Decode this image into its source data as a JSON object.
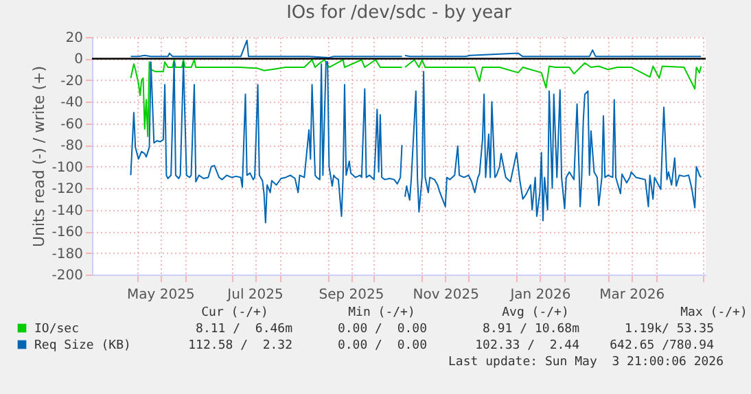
{
  "chart_data": {
    "type": "line",
    "title": "IOs for /dev/sdc - by year",
    "ylabel": "Units read (-) / write (+)",
    "xlim": [
      "2025-04-02",
      "2026-05-03"
    ],
    "xticks": [
      {
        "value": "2025-05-01",
        "label": null
      },
      {
        "value": "2025-05-16",
        "label": "May 2025"
      },
      {
        "value": "2025-06-01",
        "label": null
      },
      {
        "value": "2025-07-01",
        "label": null
      },
      {
        "value": "2025-07-16",
        "label": "Jul 2025"
      },
      {
        "value": "2025-08-01",
        "label": null
      },
      {
        "value": "2025-09-01",
        "label": null
      },
      {
        "value": "2025-09-16",
        "label": "Sep 2025"
      },
      {
        "value": "2025-10-01",
        "label": null
      },
      {
        "value": "2025-11-01",
        "label": null
      },
      {
        "value": "2025-11-16",
        "label": "Nov 2025"
      },
      {
        "value": "2025-12-01",
        "label": null
      },
      {
        "value": "2026-01-01",
        "label": null
      },
      {
        "value": "2026-01-16",
        "label": "Jan 2026"
      },
      {
        "value": "2026-02-01",
        "label": null
      },
      {
        "value": "2026-03-01",
        "label": null
      },
      {
        "value": "2026-03-16",
        "label": "Mar 2026"
      },
      {
        "value": "2026-04-01",
        "label": null
      },
      {
        "value": "2026-05-01",
        "label": null
      }
    ],
    "ylim": [
      -200,
      20
    ],
    "yticks": [
      20,
      0,
      -20,
      -40,
      -60,
      -80,
      -100,
      -120,
      -140,
      -160,
      -180,
      -200
    ],
    "grid": true,
    "legend": "bottom",
    "line_style": "solid",
    "marker": "none",
    "ref_lines": [
      {
        "axis": "y",
        "value": 0,
        "color": "#000000"
      }
    ],
    "series": [
      {
        "name": "IO/sec",
        "color": "#00cc00",
        "x": [
          "2025-04-27",
          "2025-04-29",
          "2025-04-30",
          "2025-05-02",
          "2025-05-03",
          "2025-05-04",
          "2025-05-05",
          "2025-05-06",
          "2025-05-07",
          "2025-05-08",
          "2025-05-09",
          "2025-05-10",
          "2025-05-13",
          "2025-05-18",
          "2025-05-19",
          "2025-05-21",
          "2025-05-24",
          "2025-05-25",
          "2025-05-26",
          "2025-05-30",
          "2025-05-31",
          "2025-06-01",
          "2025-06-05",
          "2025-06-07",
          "2025-06-08",
          "2025-06-20",
          "2025-07-06",
          "2025-07-18",
          "2025-07-22",
          "2025-07-27",
          "2025-08-05",
          "2025-08-17",
          "2025-08-22",
          "2025-08-24",
          "2025-08-27",
          "2025-08-30",
          "2025-09-02",
          "2025-09-11",
          "2025-09-12",
          "2025-09-23",
          "2025-09-25",
          "2025-10-02",
          "2025-10-05",
          "2025-10-17",
          "2025-10-19",
          "2025-10-20",
          "2025-10-21",
          "2025-10-27",
          "2025-10-30",
          "2025-11-01",
          "2025-11-03",
          "2025-11-20",
          "2025-12-05",
          "2025-12-08",
          "2025-12-10",
          "2025-12-21",
          "2026-01-02",
          "2026-01-05",
          "2026-01-17",
          "2026-01-20",
          "2026-01-22",
          "2026-01-26",
          "2026-02-04",
          "2026-02-07",
          "2026-02-14",
          "2026-02-18",
          "2026-02-23",
          "2026-03-01",
          "2026-03-07",
          "2026-03-16",
          "2026-03-28",
          "2026-03-30",
          "2026-04-03",
          "2026-04-05",
          "2026-04-19",
          "2026-04-26",
          "2026-04-27",
          "2026-04-29",
          "2026-04-30"
        ],
        "values": [
          -18,
          -5,
          -10,
          -23,
          -34,
          -20,
          -18,
          -65,
          -38,
          -72,
          -3,
          -10,
          -12,
          -12,
          -3,
          -8,
          -8,
          -1,
          -8,
          -8,
          -1,
          -8,
          -8,
          -1,
          -8,
          -8,
          -8,
          -9,
          -11,
          -10,
          -8,
          -8,
          -1,
          -8,
          -4,
          -1,
          -8,
          -1,
          -8,
          -1,
          -8,
          -1,
          -8,
          -8,
          -8,
          null,
          -8,
          -1,
          -8,
          -1,
          -8,
          -8,
          -8,
          -21,
          -8,
          -8,
          -13,
          -8,
          -13,
          -27,
          -7,
          -8,
          -8,
          -14,
          -4,
          -8,
          -7,
          -10,
          -8,
          -8,
          -17,
          -7,
          -18,
          -7,
          -8,
          -28,
          -8,
          -13,
          -7
        ]
      },
      {
        "name": "Req Size (KB)",
        "color": "#0066b3",
        "x": [
          "2025-04-27",
          "2025-04-29",
          "2025-04-30",
          "2025-05-02",
          "2025-05-04",
          "2025-05-06",
          "2025-05-07",
          "2025-05-09",
          "2025-05-10",
          "2025-05-12",
          "2025-05-14",
          "2025-05-16",
          "2025-05-18",
          "2025-05-19",
          "2025-05-20",
          "2025-05-21",
          "2025-05-23",
          "2025-05-25",
          "2025-05-26",
          "2025-05-28",
          "2025-05-29",
          "2025-05-31",
          "2025-06-02",
          "2025-06-04",
          "2025-06-05",
          "2025-06-07",
          "2025-06-08",
          "2025-06-10",
          "2025-06-13",
          "2025-06-16",
          "2025-06-18",
          "2025-06-20",
          "2025-06-23",
          "2025-06-25",
          "2025-06-28",
          "2025-07-01",
          "2025-07-04",
          "2025-07-07",
          "2025-07-08",
          "2025-07-10",
          "2025-07-11",
          "2025-07-13",
          "2025-07-15",
          "2025-07-16",
          "2025-07-18",
          "2025-07-19",
          "2025-07-21",
          "2025-07-22",
          "2025-07-23",
          "2025-07-24",
          "2025-07-26",
          "2025-07-27",
          "2025-07-30",
          "2025-08-02",
          "2025-08-05",
          "2025-08-08",
          "2025-08-11",
          "2025-08-13",
          "2025-08-14",
          "2025-08-17",
          "2025-08-20",
          "2025-08-21",
          "2025-08-22",
          "2025-08-24",
          "2025-08-25",
          "2025-08-27",
          "2025-08-28",
          "2025-08-29",
          "2025-08-31",
          "2025-09-01",
          "2025-09-02",
          "2025-09-04",
          "2025-09-05",
          "2025-09-06",
          "2025-09-08",
          "2025-09-10",
          "2025-09-11",
          "2025-09-12",
          "2025-09-13",
          "2025-09-15",
          "2025-09-16",
          "2025-09-19",
          "2025-09-22",
          "2025-09-23",
          "2025-09-25",
          "2025-09-26",
          "2025-09-28",
          "2025-10-01",
          "2025-10-02",
          "2025-10-03",
          "2025-10-04",
          "2025-10-05",
          "2025-10-06",
          "2025-10-08",
          "2025-10-11",
          "2025-10-14",
          "2025-10-16",
          "2025-10-18",
          "2025-10-19",
          "2025-10-20",
          "2025-10-21",
          "2025-10-22",
          "2025-10-24",
          "2025-10-25",
          "2025-10-28",
          "2025-10-29",
          "2025-10-30",
          "2025-11-01",
          "2025-11-02",
          "2025-11-03",
          "2025-11-05",
          "2025-11-06",
          "2025-11-09",
          "2025-11-11",
          "2025-11-12",
          "2025-11-16",
          "2025-11-17",
          "2025-11-19",
          "2025-11-22",
          "2025-11-24",
          "2025-11-25",
          "2025-11-28",
          "2025-12-01",
          "2025-12-03",
          "2025-12-05",
          "2025-12-07",
          "2025-12-08",
          "2025-12-10",
          "2025-12-11",
          "2025-12-12",
          "2025-12-14",
          "2025-12-15",
          "2025-12-16",
          "2025-12-18",
          "2025-12-19",
          "2025-12-21",
          "2025-12-22",
          "2025-12-24",
          "2025-12-25",
          "2025-12-28",
          "2026-01-01",
          "2026-01-03",
          "2026-01-05",
          "2026-01-07",
          "2026-01-10",
          "2026-01-11",
          "2026-01-13",
          "2026-01-14",
          "2026-01-16",
          "2026-01-17",
          "2026-01-18",
          "2026-01-19",
          "2026-01-21",
          "2026-01-22",
          "2026-01-24",
          "2026-01-25",
          "2026-01-27",
          "2026-01-29",
          "2026-01-30",
          "2026-02-01",
          "2026-02-02",
          "2026-02-04",
          "2026-02-07",
          "2026-02-09",
          "2026-02-11",
          "2026-02-12",
          "2026-02-13",
          "2026-02-14",
          "2026-02-16",
          "2026-02-17",
          "2026-02-18",
          "2026-02-20",
          "2026-02-22",
          "2026-02-23",
          "2026-02-25",
          "2026-02-26",
          "2026-02-27",
          "2026-03-01",
          "2026-03-04",
          "2026-03-05",
          "2026-03-06",
          "2026-03-09",
          "2026-03-10",
          "2026-03-13",
          "2026-03-15",
          "2026-03-16",
          "2026-03-19",
          "2026-03-22",
          "2026-03-25",
          "2026-03-27",
          "2026-03-28",
          "2026-03-30",
          "2026-03-31",
          "2026-04-04",
          "2026-04-06",
          "2026-04-08",
          "2026-04-09",
          "2026-04-11",
          "2026-04-13",
          "2026-04-14",
          "2026-04-16",
          "2026-04-19",
          "2026-04-22",
          "2026-04-24",
          "2026-04-26",
          "2026-04-27",
          "2026-04-29",
          "2026-04-30"
        ],
        "values": [
          -108,
          -50,
          -82,
          -93,
          -86,
          -88,
          -91,
          -82,
          -3,
          -78,
          -76,
          -77,
          -75,
          -24,
          -108,
          -111,
          -108,
          -3,
          -108,
          -111,
          -108,
          -3,
          -108,
          -110,
          -108,
          -24,
          -114,
          -108,
          -111,
          -110,
          -100,
          -99,
          -110,
          -112,
          -108,
          -110,
          -109,
          -110,
          -119,
          -33,
          -108,
          -106,
          -112,
          -110,
          -24,
          -108,
          -113,
          -125,
          -152,
          -117,
          -124,
          -113,
          -117,
          -111,
          -110,
          -108,
          -111,
          -124,
          -108,
          -110,
          -66,
          -93,
          -24,
          -108,
          -110,
          -112,
          -5,
          -108,
          -3,
          -3,
          -100,
          -118,
          -108,
          -110,
          -112,
          -146,
          -110,
          -24,
          -108,
          -95,
          -106,
          -110,
          -108,
          -110,
          -28,
          -110,
          -108,
          -112,
          -83,
          -47,
          -105,
          -52,
          -110,
          -112,
          -111,
          -112,
          -116,
          -110,
          -80,
          null,
          -128,
          -118,
          -131,
          -112,
          -30,
          -110,
          -142,
          -110,
          -12,
          -110,
          -124,
          -110,
          -112,
          -117,
          -122,
          -137,
          -110,
          -112,
          -108,
          -81,
          -108,
          -110,
          -108,
          -114,
          -124,
          -110,
          -107,
          -75,
          -33,
          -110,
          -70,
          -110,
          -40,
          -110,
          -108,
          -100,
          -88,
          -103,
          -110,
          -114,
          -87,
          -112,
          -130,
          -126,
          -117,
          -140,
          -110,
          -146,
          -124,
          -87,
          -150,
          -110,
          -140,
          -30,
          -120,
          -33,
          -110,
          -29,
          -110,
          -139,
          -110,
          -105,
          -112,
          -42,
          -137,
          -110,
          -58,
          -33,
          -30,
          -108,
          -67,
          -105,
          -110,
          -136,
          -110,
          -53,
          -110,
          -108,
          -110,
          -38,
          -110,
          -125,
          -107,
          -115,
          -110,
          -105,
          -110,
          -111,
          -112,
          -137,
          -108,
          -130,
          -110,
          -121,
          -45,
          -112,
          -105,
          -117,
          -92,
          -118,
          -108,
          -109,
          -108,
          -120,
          -138,
          -100,
          -108,
          -110
        ]
      },
      {
        "color": "#0066b3",
        "x": [
          "2025-04-27",
          "2025-05-02",
          "2025-05-06",
          "2025-05-10",
          "2025-05-21",
          "2025-05-22",
          "2025-05-24",
          "2025-07-07",
          "2025-07-11",
          "2025-07-12",
          "2025-08-20",
          "2025-09-02",
          "2025-09-05",
          "2025-10-19",
          "2025-10-20",
          "2025-10-21",
          "2025-10-24",
          "2025-11-29",
          "2025-12-02",
          "2026-01-02",
          "2026-01-05",
          "2026-02-17",
          "2026-02-19",
          "2026-02-21",
          "2026-04-30"
        ],
        "values": [
          2,
          2,
          3,
          2,
          2,
          5,
          2,
          2,
          17,
          2,
          2,
          1,
          2,
          2,
          null,
          3,
          2,
          2,
          3,
          5,
          2,
          2,
          8,
          2,
          2
        ]
      }
    ],
    "annotations": [
      "Cur (-/+)",
      "Min (-/+)",
      "Avg (-/+)",
      "Max (-/+)",
      "8.11 /  6.46m",
      "0.00 /  0.00",
      "8.91 / 10.68m",
      "1.19k/ 53.35",
      "112.58 /  2.32",
      "0.00 /  0.00",
      "102.33 /  2.44",
      "642.65 /780.94",
      "Last update: Sun May  3 21:00:06 2026"
    ]
  }
}
